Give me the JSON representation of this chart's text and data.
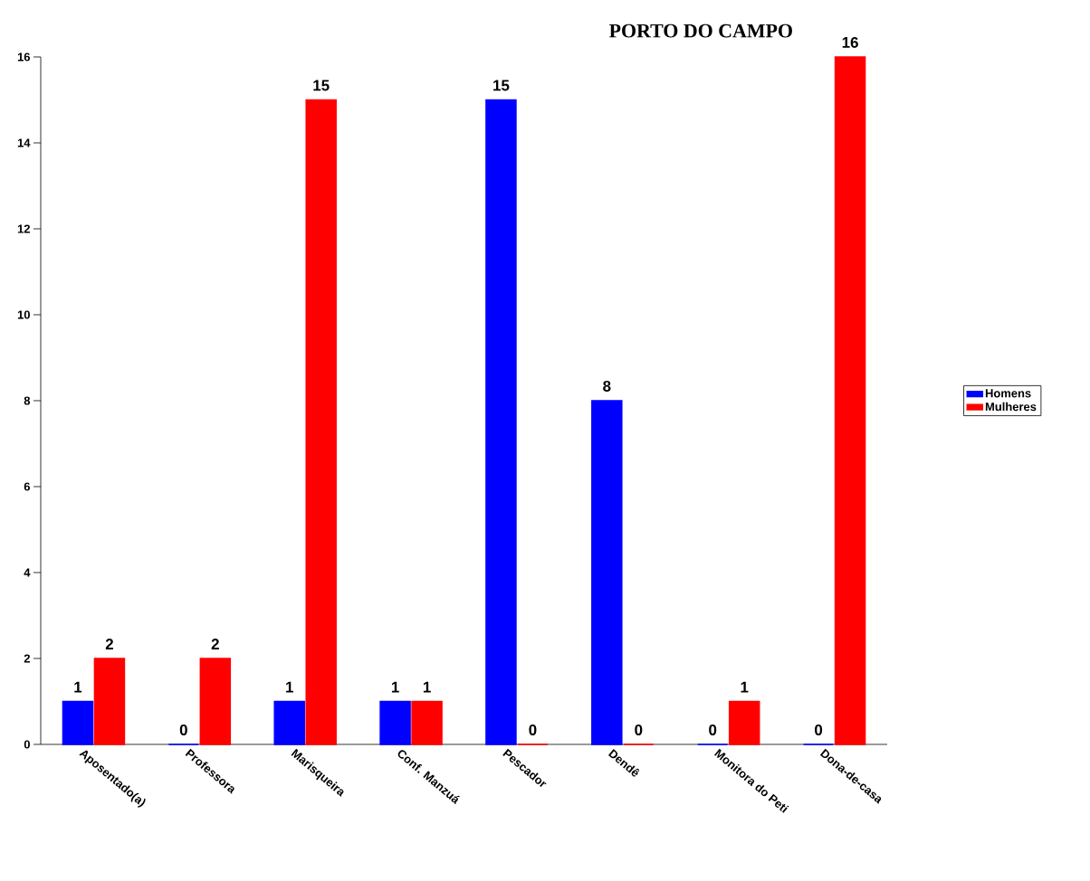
{
  "chart_data": {
    "type": "bar",
    "title": "PORTO DO CAMPO",
    "categories": [
      "Aposentado(a)",
      "Professora",
      "Marisqueira",
      "Conf. Manzuá",
      "Pescador",
      "Dendê",
      "Monitora do Peti",
      "Dona-de-casa"
    ],
    "series": [
      {
        "name": "Homens",
        "color": "#0000ff",
        "values": [
          1,
          0,
          1,
          1,
          15,
          8,
          0,
          0
        ]
      },
      {
        "name": "Mulheres",
        "color": "#ff0000",
        "values": [
          2,
          2,
          15,
          1,
          0,
          0,
          1,
          16
        ]
      }
    ],
    "ylim": [
      0,
      16
    ],
    "yticks": [
      0,
      2,
      4,
      6,
      8,
      10,
      12,
      14,
      16
    ],
    "data_labels": true,
    "legend": "right",
    "grid": false
  }
}
